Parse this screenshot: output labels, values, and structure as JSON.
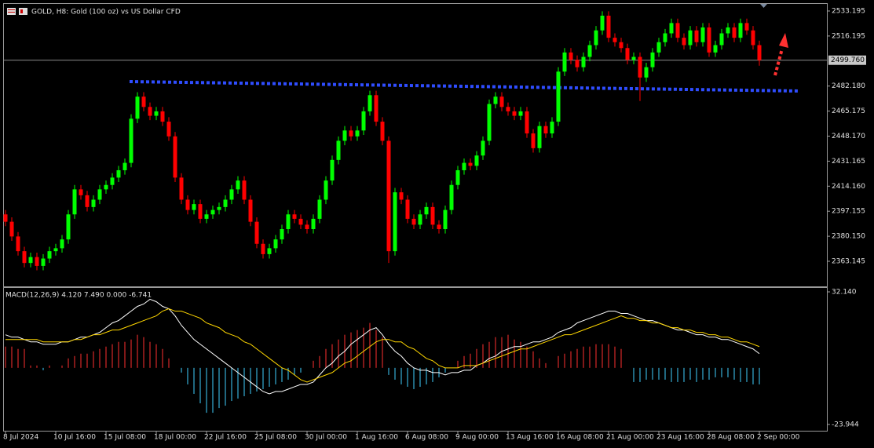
{
  "chart_data": {
    "type": "candlestick",
    "title": "GOLD, H8:  Gold (100 oz) vs US Dollar CFD",
    "categories": [
      "8 Jul 2024",
      null,
      null,
      null,
      null,
      null,
      null,
      null,
      "10 Jul 16:00",
      null,
      null,
      null,
      null,
      null,
      null,
      null,
      "15 Jul 08:00",
      null,
      null,
      null,
      null,
      null,
      null,
      null,
      "18 Jul 00:00",
      null,
      null,
      null,
      null,
      null,
      null,
      null,
      "22 Jul 16:00",
      null,
      null,
      null,
      null,
      null,
      null,
      null,
      "25 Jul 08:00",
      null,
      null,
      null,
      null,
      null,
      null,
      null,
      "30 Jul 00:00",
      null,
      null,
      null,
      null,
      null,
      null,
      null,
      "1 Aug 16:00",
      null,
      null,
      null,
      null,
      null,
      null,
      null,
      "6 Aug 08:00",
      null,
      null,
      null,
      null,
      null,
      null,
      null,
      "9 Aug 00:00",
      null,
      null,
      null,
      null,
      null,
      null,
      null,
      "13 Aug 16:00",
      null,
      null,
      null,
      null,
      null,
      null,
      null,
      "16 Aug 08:00",
      null,
      null,
      null,
      null,
      null,
      null,
      null,
      "21 Aug 00:00",
      null,
      null,
      null,
      null,
      null,
      null,
      null,
      "23 Aug 16:00",
      null,
      null,
      null,
      null,
      null,
      null,
      null,
      "28 Aug 08:00",
      null,
      null,
      null,
      null,
      null,
      null,
      null,
      "2 Sep 00:00"
    ],
    "open": [
      2395,
      2390,
      2380,
      2370,
      2362,
      2366,
      2360,
      2365,
      2370,
      2372,
      2378,
      2395,
      2412,
      2408,
      2400,
      2405,
      2412,
      2415,
      2420,
      2425,
      2430,
      2460,
      2475,
      2468,
      2462,
      2465,
      2458,
      2448,
      2420,
      2405,
      2398,
      2402,
      2392,
      2395,
      2398,
      2400,
      2405,
      2412,
      2418,
      2405,
      2390,
      2375,
      2368,
      2372,
      2378,
      2385,
      2395,
      2392,
      2388,
      2385,
      2392,
      2405,
      2418,
      2432,
      2445,
      2452,
      2448,
      2452,
      2465,
      2476,
      2458,
      2445,
      2370,
      2410,
      2405,
      2392,
      2388,
      2395,
      2400,
      2388,
      2385,
      2398,
      2415,
      2425,
      2430,
      2428,
      2435,
      2445,
      2470,
      2475,
      2468,
      2465,
      2462,
      2465,
      2450,
      2440,
      2455,
      2450,
      2458,
      2492,
      2505,
      2500,
      2495,
      2502,
      2510,
      2520,
      2530,
      2515,
      2512,
      2508,
      2500,
      2502,
      2488,
      2495,
      2505,
      2512,
      2518,
      2525,
      2515,
      2510,
      2520,
      2512,
      2522,
      2505,
      2510,
      2518,
      2522,
      2515,
      2525,
      2520,
      2510
    ],
    "high": [
      2398,
      2393,
      2383,
      2373,
      2369,
      2369,
      2368,
      2373,
      2375,
      2381,
      2398,
      2415,
      2415,
      2411,
      2408,
      2415,
      2418,
      2423,
      2428,
      2433,
      2463,
      2478,
      2478,
      2471,
      2468,
      2468,
      2461,
      2451,
      2423,
      2408,
      2405,
      2405,
      2398,
      2401,
      2403,
      2408,
      2415,
      2421,
      2421,
      2408,
      2393,
      2378,
      2375,
      2381,
      2388,
      2398,
      2398,
      2395,
      2391,
      2395,
      2408,
      2421,
      2435,
      2448,
      2455,
      2455,
      2455,
      2468,
      2479,
      2479,
      2461,
      2448,
      2413,
      2413,
      2408,
      2395,
      2398,
      2403,
      2403,
      2391,
      2401,
      2418,
      2428,
      2433,
      2433,
      2438,
      2448,
      2473,
      2478,
      2478,
      2471,
      2468,
      2468,
      2468,
      2453,
      2458,
      2458,
      2461,
      2495,
      2508,
      2508,
      2503,
      2505,
      2513,
      2523,
      2533,
      2533,
      2518,
      2515,
      2511,
      2505,
      2505,
      2498,
      2508,
      2515,
      2521,
      2528,
      2528,
      2518,
      2523,
      2523,
      2525,
      2525,
      2513,
      2521,
      2525,
      2525,
      2528,
      2528,
      2523,
      2513
    ],
    "low": [
      2387,
      2377,
      2367,
      2359,
      2359,
      2357,
      2357,
      2362,
      2367,
      2369,
      2375,
      2392,
      2405,
      2397,
      2397,
      2402,
      2409,
      2412,
      2417,
      2422,
      2427,
      2457,
      2465,
      2459,
      2459,
      2455,
      2445,
      2417,
      2402,
      2395,
      2395,
      2389,
      2389,
      2392,
      2395,
      2397,
      2402,
      2409,
      2402,
      2387,
      2372,
      2365,
      2365,
      2369,
      2375,
      2382,
      2389,
      2385,
      2382,
      2382,
      2389,
      2402,
      2415,
      2429,
      2442,
      2445,
      2445,
      2449,
      2462,
      2455,
      2442,
      2362,
      2367,
      2402,
      2389,
      2385,
      2385,
      2392,
      2385,
      2382,
      2382,
      2395,
      2412,
      2422,
      2425,
      2425,
      2432,
      2442,
      2467,
      2465,
      2462,
      2459,
      2459,
      2447,
      2437,
      2437,
      2447,
      2447,
      2455,
      2489,
      2497,
      2492,
      2492,
      2499,
      2507,
      2517,
      2512,
      2509,
      2505,
      2497,
      2497,
      2472,
      2485,
      2492,
      2502,
      2509,
      2515,
      2512,
      2507,
      2507,
      2509,
      2509,
      2502,
      2502,
      2507,
      2515,
      2512,
      2512,
      2517,
      2507,
      2496
    ],
    "close": [
      2390,
      2380,
      2370,
      2362,
      2366,
      2360,
      2365,
      2370,
      2372,
      2378,
      2395,
      2412,
      2408,
      2400,
      2405,
      2412,
      2415,
      2420,
      2425,
      2430,
      2460,
      2475,
      2468,
      2462,
      2465,
      2458,
      2448,
      2420,
      2405,
      2398,
      2402,
      2392,
      2395,
      2398,
      2400,
      2405,
      2412,
      2418,
      2405,
      2390,
      2375,
      2368,
      2372,
      2378,
      2385,
      2395,
      2392,
      2388,
      2385,
      2392,
      2405,
      2418,
      2432,
      2445,
      2452,
      2448,
      2452,
      2465,
      2476,
      2458,
      2445,
      2370,
      2410,
      2405,
      2392,
      2388,
      2395,
      2400,
      2388,
      2385,
      2398,
      2415,
      2425,
      2430,
      2428,
      2435,
      2445,
      2470,
      2475,
      2468,
      2465,
      2462,
      2465,
      2450,
      2440,
      2455,
      2450,
      2458,
      2492,
      2505,
      2500,
      2495,
      2502,
      2510,
      2520,
      2530,
      2515,
      2512,
      2508,
      2500,
      2502,
      2488,
      2495,
      2505,
      2512,
      2518,
      2525,
      2515,
      2510,
      2520,
      2512,
      2522,
      2505,
      2510,
      2518,
      2522,
      2515,
      2525,
      2520,
      2510,
      2499.76
    ],
    "up_color": "#00ff00",
    "down_color": "#ff0000",
    "ylim": [
      2346.09,
      2537.99
    ],
    "yticks": [
      2533.195,
      2516.195,
      {
        "value": 2482.18,
        "label": "2482.180"
      },
      2465.175,
      {
        "value": 2448.17,
        "label": "2448.170"
      },
      2431.165,
      {
        "value": 2414.16,
        "label": "2414.160"
      },
      2397.155,
      {
        "value": 2380.15,
        "label": "2380.150"
      },
      2363.145
    ],
    "current_price": {
      "value": 2499.76,
      "label": "2499.760"
    },
    "indicator": {
      "label": "MACD(12,26,9) 4.120 7.490 0.000 -6.741",
      "ylim": [
        -26.93,
        33.8
      ],
      "yticks": [
        {
          "value": 32.14,
          "label": "32.140"
        },
        -23.944
      ],
      "histogram": {
        "up_color": "#ff3030",
        "down_color": "#40d0ff",
        "values": [
          9,
          9,
          8,
          8,
          1,
          1,
          -1,
          1,
          0,
          1,
          4,
          5,
          6,
          6,
          7,
          8,
          9,
          10,
          11,
          11,
          12,
          14,
          13,
          11,
          10,
          8,
          4,
          0,
          -2,
          -7,
          -11,
          -15,
          -19,
          -19,
          -17,
          -16,
          -14,
          -13,
          -12,
          -11,
          -10,
          -9,
          -8,
          -7,
          -6,
          -5,
          -3,
          -2,
          0,
          3,
          5,
          8,
          10,
          12,
          14,
          15,
          16,
          17,
          19,
          16,
          13,
          -3,
          -5,
          -7,
          -8,
          -9,
          -8,
          -7,
          -6,
          -4,
          -2,
          0,
          3,
          5,
          6,
          8,
          10,
          11,
          13,
          13,
          14,
          12,
          11,
          9,
          7,
          4,
          2,
          0,
          5,
          6,
          7,
          8,
          9,
          9,
          10,
          10,
          10,
          9,
          8,
          0,
          -6,
          -6,
          -5,
          -5,
          -5,
          -5,
          -6,
          -6,
          -6,
          -5,
          -6,
          -5,
          -5,
          -4,
          -4,
          -4,
          -5,
          -6,
          -6,
          -7,
          -7
        ]
      },
      "main_line": {
        "color": "#ffffff",
        "values": [
          14,
          13,
          13,
          12,
          11,
          11,
          10,
          10,
          10,
          11,
          11,
          12,
          13,
          13,
          14,
          15,
          17,
          19,
          20,
          22,
          24,
          26,
          27,
          29,
          28,
          26,
          25,
          22,
          18,
          15,
          12,
          10,
          8,
          6,
          4,
          2,
          0,
          -2,
          -4,
          -6,
          -8,
          -10,
          -11,
          -10,
          -10,
          -9,
          -8,
          -7,
          -7,
          -6,
          -3,
          0,
          2,
          5,
          7,
          10,
          12,
          14,
          16,
          17,
          14,
          10,
          7,
          5,
          2,
          0,
          -1,
          -1,
          -2,
          -2,
          -3,
          -2,
          -2,
          -1,
          -1,
          1,
          2,
          4,
          5,
          7,
          8,
          9,
          9,
          10,
          11,
          11,
          12,
          13,
          15,
          16,
          17,
          19,
          20,
          21,
          22,
          23,
          24,
          24,
          23,
          23,
          22,
          21,
          20,
          20,
          19,
          18,
          17,
          16,
          16,
          15,
          14,
          14,
          13,
          13,
          12,
          12,
          11,
          10,
          9,
          8,
          6
        ]
      },
      "signal_line": {
        "color": "#ffd700",
        "values": [
          12,
          12,
          12,
          12,
          12,
          12,
          11,
          11,
          11,
          11,
          11,
          12,
          12,
          13,
          14,
          14,
          15,
          16,
          16,
          17,
          18,
          19,
          20,
          21,
          22,
          24,
          25,
          24,
          24,
          23,
          22,
          21,
          19,
          18,
          17,
          15,
          14,
          13,
          11,
          10,
          8,
          6,
          4,
          2,
          0,
          -1,
          -3,
          -5,
          -6,
          -5,
          -4,
          -3,
          -2,
          0,
          2,
          3,
          5,
          7,
          9,
          11,
          12,
          12,
          11,
          11,
          9,
          8,
          6,
          4,
          3,
          1,
          0,
          0,
          0,
          1,
          1,
          1,
          2,
          3,
          4,
          5,
          6,
          7,
          8,
          8,
          9,
          10,
          11,
          12,
          13,
          14,
          14,
          15,
          16,
          17,
          18,
          19,
          20,
          21,
          22,
          21,
          21,
          20,
          20,
          19,
          19,
          18,
          17,
          17,
          16,
          16,
          15,
          15,
          14,
          14,
          13,
          13,
          12,
          11,
          11,
          10,
          9
        ]
      }
    }
  }
}
